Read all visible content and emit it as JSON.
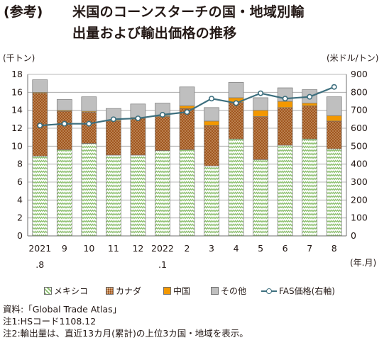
{
  "title": {
    "prefix": "(参考)",
    "line1": "米国のコーンスターチの国・地域別輸",
    "line2": "出量および輸出価格の推移"
  },
  "axes": {
    "left_unit": "(千トン)",
    "right_unit": "(米ドル/トン)",
    "x_unit": "(年.月)"
  },
  "legend": {
    "mexico": "メキシコ",
    "canada": "カナダ",
    "china": "中国",
    "other": "その他",
    "price": "FAS価格(右軸)"
  },
  "notes": {
    "source": "資料:「Global Trade Atlas」",
    "note1": "注1:HSコード1108.12",
    "note2": "注2:輸出量は、直近13カ月(累計)の上位3カ国・地域を表示。"
  },
  "colors": {
    "mexico": "#8cbf6e",
    "canada": "#a0561e",
    "china": "#f39800",
    "other": "#bfbfbf",
    "price_line": "#3d6f7e",
    "grid": "#a0a0a0"
  },
  "chart_data": {
    "type": "bar",
    "stacked": true,
    "categories": [
      [
        "2021",
        ".8"
      ],
      [
        "9",
        ""
      ],
      [
        "10",
        ""
      ],
      [
        "11",
        ""
      ],
      [
        "12",
        ""
      ],
      [
        "2022",
        ".1"
      ],
      [
        "2",
        ""
      ],
      [
        "3",
        ""
      ],
      [
        "4",
        ""
      ],
      [
        "5",
        ""
      ],
      [
        "6",
        ""
      ],
      [
        "7",
        ""
      ],
      [
        "8",
        ""
      ]
    ],
    "series": [
      {
        "name": "メキシコ",
        "values": [
          8.9,
          9.6,
          10.3,
          9.0,
          9.0,
          9.5,
          9.6,
          7.8,
          10.8,
          8.5,
          10.1,
          10.8,
          9.7
        ]
      },
      {
        "name": "カナダ",
        "values": [
          7.0,
          4.3,
          3.5,
          3.8,
          4.1,
          3.8,
          4.6,
          4.5,
          4.1,
          4.8,
          4.2,
          3.7,
          3.1
        ]
      },
      {
        "name": "中国",
        "values": [
          0.1,
          0.1,
          0.1,
          0.1,
          0.1,
          0.1,
          0.3,
          0.5,
          0.5,
          0.7,
          0.7,
          0.3,
          0.6
        ]
      },
      {
        "name": "その他",
        "values": [
          1.4,
          1.2,
          1.6,
          1.3,
          1.5,
          1.4,
          2.1,
          1.5,
          1.7,
          1.4,
          1.5,
          1.5,
          2.1
        ]
      }
    ],
    "line_series": {
      "name": "FAS価格(右軸)",
      "axis": "right",
      "values": [
        615,
        625,
        625,
        650,
        655,
        675,
        690,
        765,
        740,
        795,
        765,
        775,
        830
      ]
    },
    "ylim_left": [
      0,
      18
    ],
    "yticks_left": [
      0,
      2,
      4,
      6,
      8,
      10,
      12,
      14,
      16,
      18
    ],
    "ylim_right": [
      0,
      900
    ],
    "yticks_right": [
      0,
      100,
      200,
      300,
      400,
      500,
      600,
      700,
      800,
      900
    ],
    "grid": true,
    "legend_position": "bottom"
  }
}
